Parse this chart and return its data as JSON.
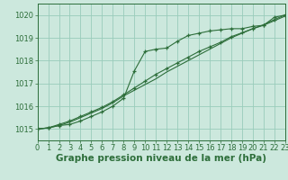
{
  "background_color": "#cce8dd",
  "grid_color": "#99ccbb",
  "line_color": "#2d6e3a",
  "title": "Graphe pression niveau de la mer (hPa)",
  "xlim": [
    0,
    23
  ],
  "ylim": [
    1014.5,
    1020.5
  ],
  "yticks": [
    1015,
    1016,
    1017,
    1018,
    1019,
    1020
  ],
  "xticks": [
    0,
    1,
    2,
    3,
    4,
    5,
    6,
    7,
    8,
    9,
    10,
    11,
    12,
    13,
    14,
    15,
    16,
    17,
    18,
    19,
    20,
    21,
    22,
    23
  ],
  "series1_x": [
    0,
    1,
    2,
    3,
    4,
    5,
    6,
    7,
    8,
    9,
    10,
    11,
    12,
    13,
    14,
    15,
    16,
    17,
    18,
    19,
    20,
    21,
    22,
    23
  ],
  "series1_y": [
    1015.0,
    1015.05,
    1015.15,
    1015.2,
    1015.35,
    1015.55,
    1015.75,
    1016.0,
    1016.35,
    1017.55,
    1018.4,
    1018.5,
    1018.55,
    1018.85,
    1019.1,
    1019.2,
    1019.3,
    1019.35,
    1019.4,
    1019.4,
    1019.5,
    1019.55,
    1019.9,
    1020.0
  ],
  "series2_x": [
    0,
    1,
    2,
    3,
    4,
    5,
    6,
    7,
    8,
    9,
    10,
    11,
    12,
    13,
    14,
    15,
    16,
    17,
    18,
    19,
    20,
    21,
    22,
    23
  ],
  "series2_y": [
    1015.0,
    1015.05,
    1015.15,
    1015.3,
    1015.5,
    1015.7,
    1015.9,
    1016.15,
    1016.45,
    1016.7,
    1016.95,
    1017.2,
    1017.5,
    1017.75,
    1018.0,
    1018.25,
    1018.5,
    1018.75,
    1019.0,
    1019.2,
    1019.4,
    1019.55,
    1019.75,
    1019.95
  ],
  "series3_x": [
    0,
    1,
    2,
    3,
    4,
    5,
    6,
    7,
    8,
    9,
    10,
    11,
    12,
    13,
    14,
    15,
    16,
    17,
    18,
    19,
    20,
    21,
    22,
    23
  ],
  "series3_y": [
    1015.0,
    1015.05,
    1015.2,
    1015.35,
    1015.55,
    1015.75,
    1015.95,
    1016.2,
    1016.5,
    1016.8,
    1017.1,
    1017.4,
    1017.65,
    1017.9,
    1018.15,
    1018.4,
    1018.6,
    1018.8,
    1019.05,
    1019.22,
    1019.4,
    1019.57,
    1019.8,
    1020.0
  ],
  "title_fontsize": 7.5,
  "tick_fontsize": 6
}
